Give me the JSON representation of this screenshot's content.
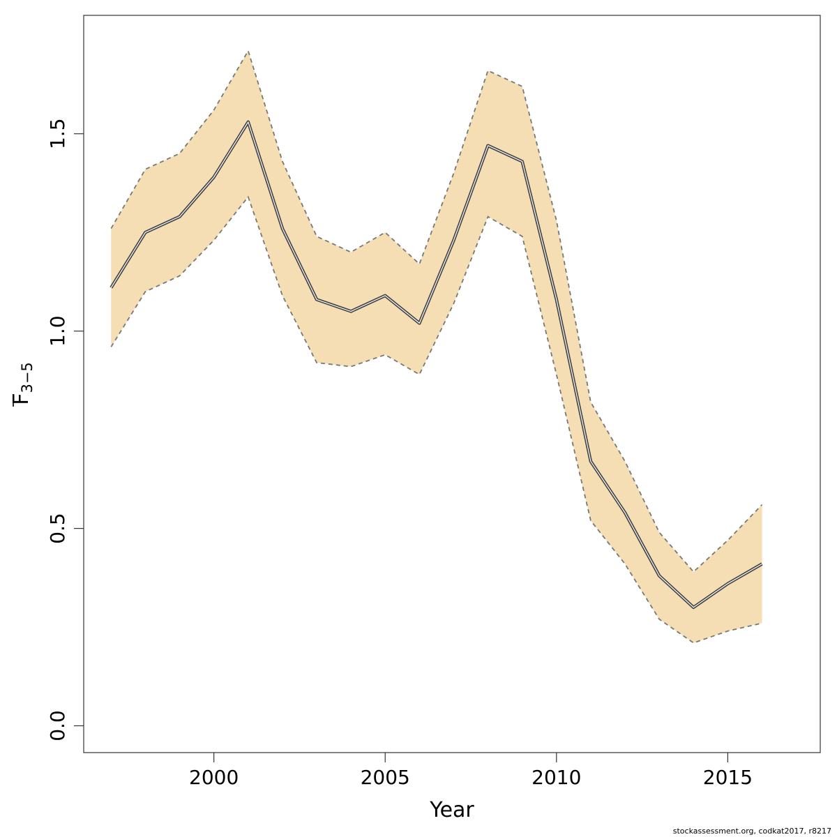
{
  "chart_data": {
    "type": "line",
    "xlabel": "Year",
    "ylabel_main": "F",
    "ylabel_sub": "3−5",
    "xlim": [
      1996.2,
      2017.7
    ],
    "ylim": [
      -0.068,
      1.8
    ],
    "xticks": [
      2000,
      2005,
      2010,
      2015
    ],
    "yticks": [
      0.0,
      0.5,
      1.0,
      1.5
    ],
    "ytick_labels": [
      "0.0",
      "0.5",
      "1.0",
      "1.5"
    ],
    "x": [
      1997,
      1998,
      1999,
      2000,
      2001,
      2002,
      2003,
      2004,
      2005,
      2006,
      2007,
      2008,
      2009,
      2010,
      2011,
      2012,
      2013,
      2014,
      2015,
      2016
    ],
    "series": [
      {
        "role": "estimate",
        "values": [
          1.11,
          1.25,
          1.29,
          1.39,
          1.53,
          1.26,
          1.08,
          1.05,
          1.09,
          1.02,
          1.23,
          1.47,
          1.43,
          1.08,
          0.67,
          0.54,
          0.38,
          0.3,
          0.36,
          0.41
        ]
      },
      {
        "role": "upper",
        "values": [
          1.26,
          1.41,
          1.45,
          1.56,
          1.71,
          1.43,
          1.24,
          1.2,
          1.25,
          1.17,
          1.4,
          1.66,
          1.62,
          1.28,
          0.82,
          0.67,
          0.49,
          0.39,
          0.47,
          0.56
        ]
      },
      {
        "role": "lower",
        "values": [
          0.96,
          1.1,
          1.14,
          1.23,
          1.34,
          1.09,
          0.92,
          0.91,
          0.94,
          0.89,
          1.07,
          1.29,
          1.24,
          0.89,
          0.52,
          0.41,
          0.27,
          0.21,
          0.24,
          0.26
        ]
      }
    ],
    "band_color": "#F5DEB3",
    "line_color": "#444444",
    "bound_color": "#777777",
    "grid": false
  },
  "footer": "stockassessment.org, codkat2017, r8217"
}
